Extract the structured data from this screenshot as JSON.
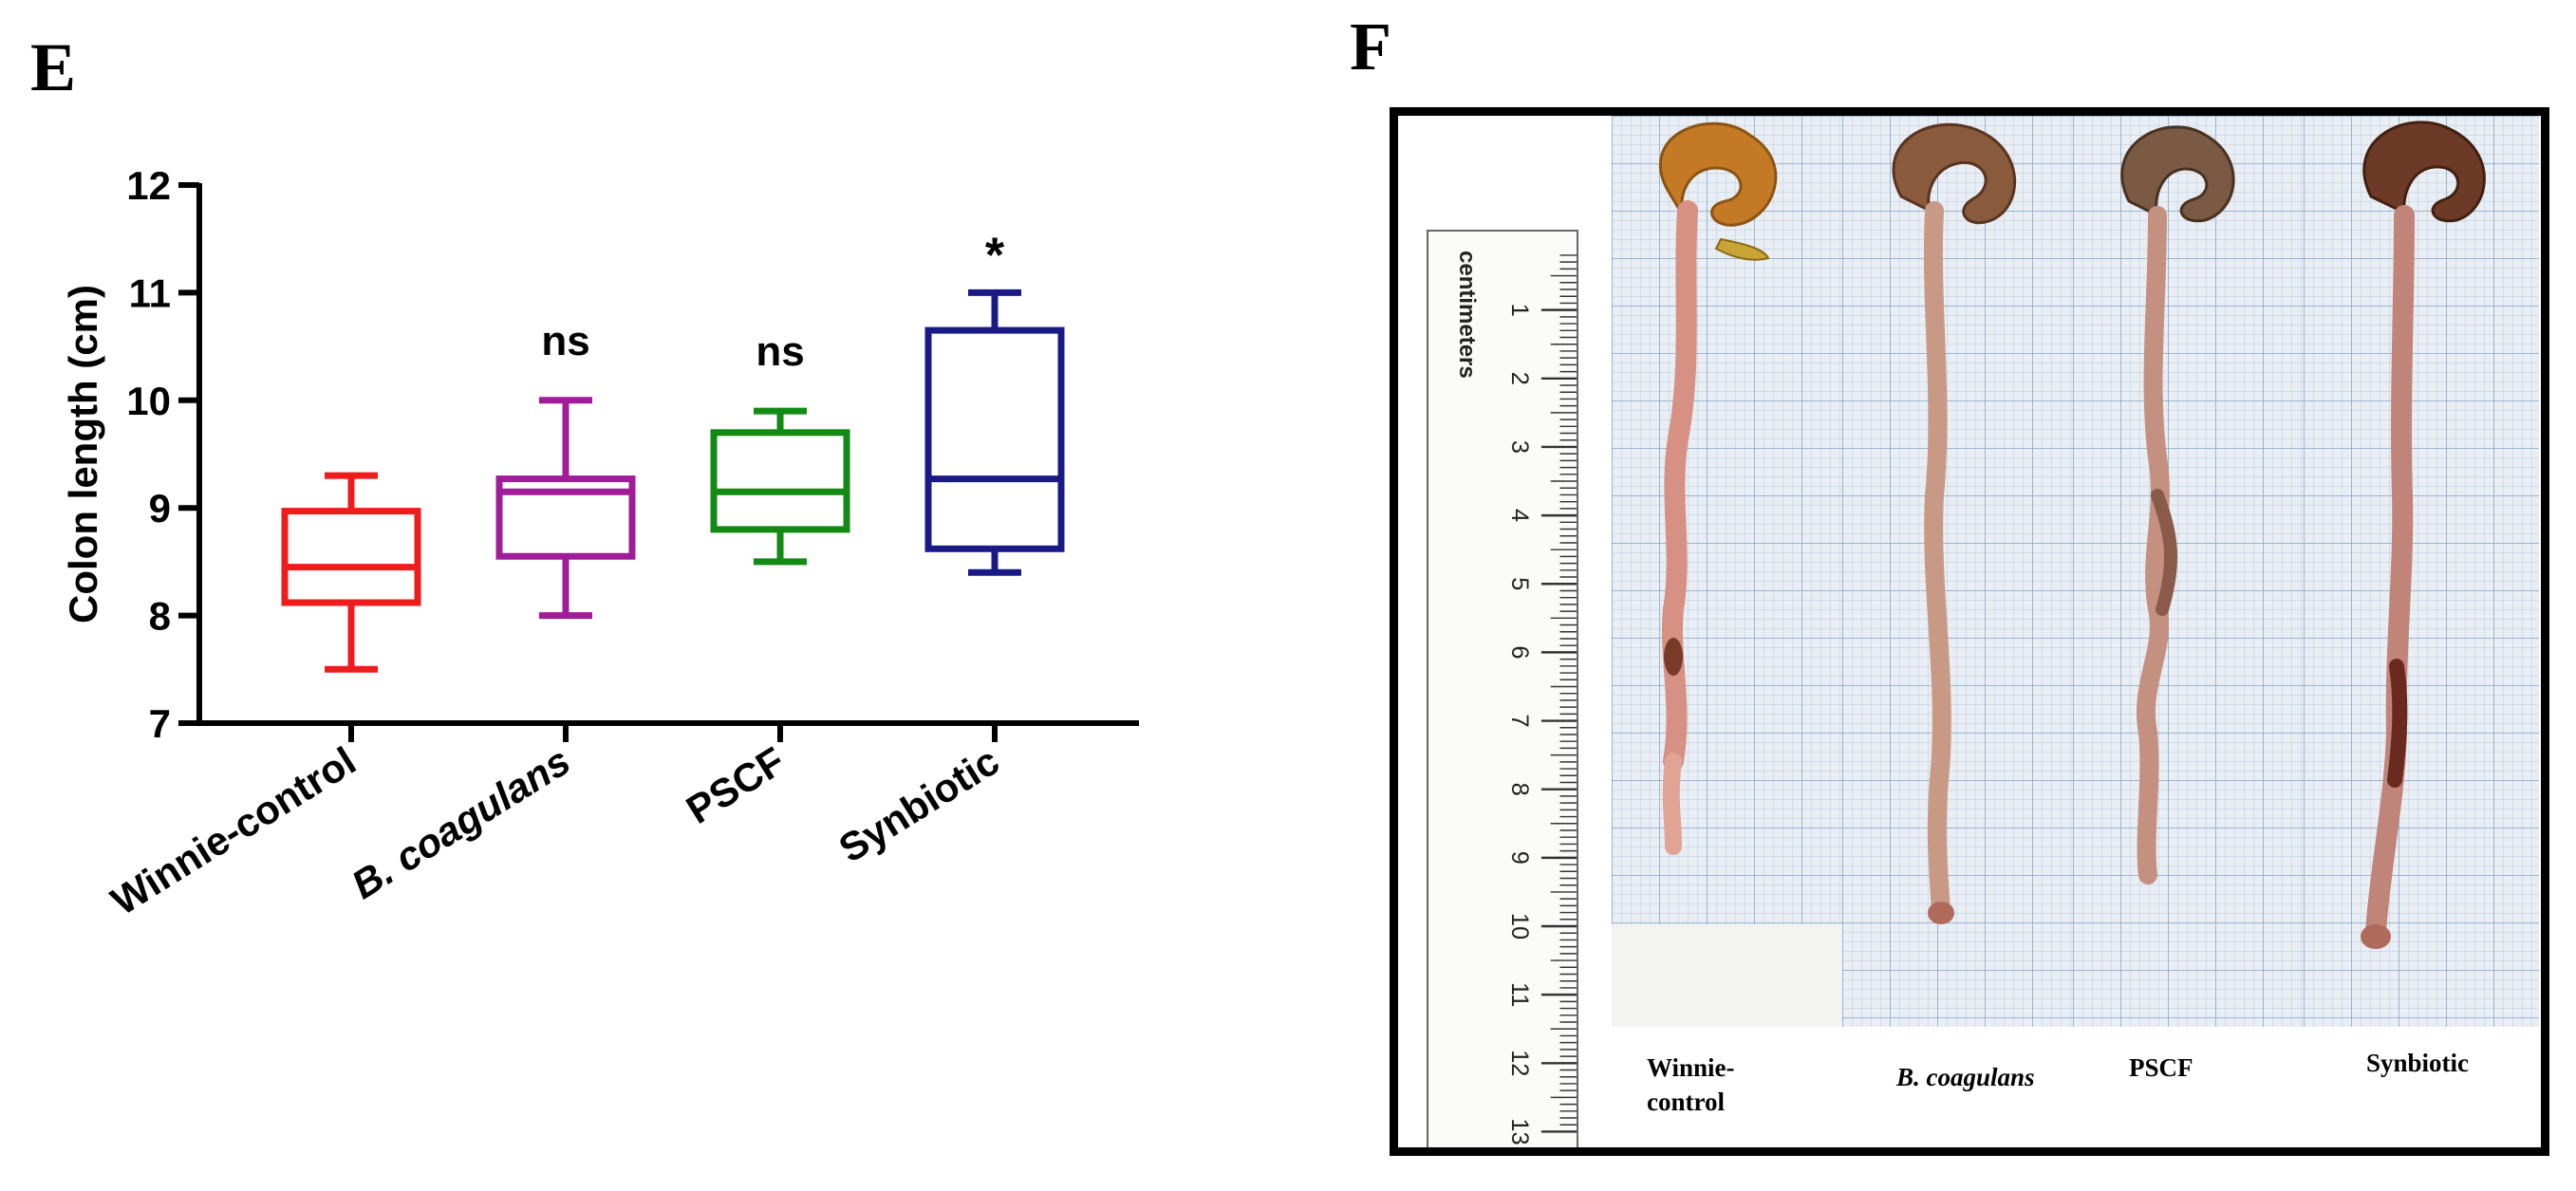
{
  "panels": {
    "left_letter": "E",
    "right_letter": "F"
  },
  "chart_data": {
    "type": "boxplot",
    "ylabel": "Colon length (cm)",
    "xlabel": "",
    "ylim": [
      7,
      12
    ],
    "yticks": [
      "7",
      "8",
      "9",
      "10",
      "11",
      "12"
    ],
    "grid": false,
    "categories": [
      "Winnie-control",
      "B. coagulans",
      "PSCF",
      "Synbiotic"
    ],
    "category_italic": [
      false,
      true,
      false,
      false
    ],
    "colors": [
      "#ee1c1c",
      "#a01c98",
      "#138a13",
      "#1a1a86"
    ],
    "boxes": [
      {
        "min": 7.5,
        "q1": 8.12,
        "median": 8.45,
        "q3": 8.97,
        "max": 9.3
      },
      {
        "min": 8.0,
        "q1": 8.55,
        "median": 9.15,
        "q3": 9.27,
        "max": 10.0
      },
      {
        "min": 8.5,
        "q1": 8.8,
        "median": 9.15,
        "q3": 9.7,
        "max": 9.9
      },
      {
        "min": 8.4,
        "q1": 8.62,
        "median": 9.27,
        "q3": 10.65,
        "max": 11.0
      }
    ],
    "annotations": [
      "",
      "ns",
      "ns",
      "*"
    ]
  },
  "photo": {
    "ruler_label": "centimeters",
    "ruler_numbers": [
      "1",
      "2",
      "3",
      "4",
      "5",
      "6",
      "7",
      "8",
      "9",
      "10",
      "11",
      "12",
      "13"
    ],
    "captions": [
      {
        "line1": "Winnie-",
        "line2": "control",
        "italic": false
      },
      {
        "line1": "B. coagulans",
        "line2": "",
        "italic": true
      },
      {
        "line1": "PSCF",
        "line2": "",
        "italic": false
      },
      {
        "line1": "Synbiotic",
        "line2": "",
        "italic": false
      }
    ]
  }
}
